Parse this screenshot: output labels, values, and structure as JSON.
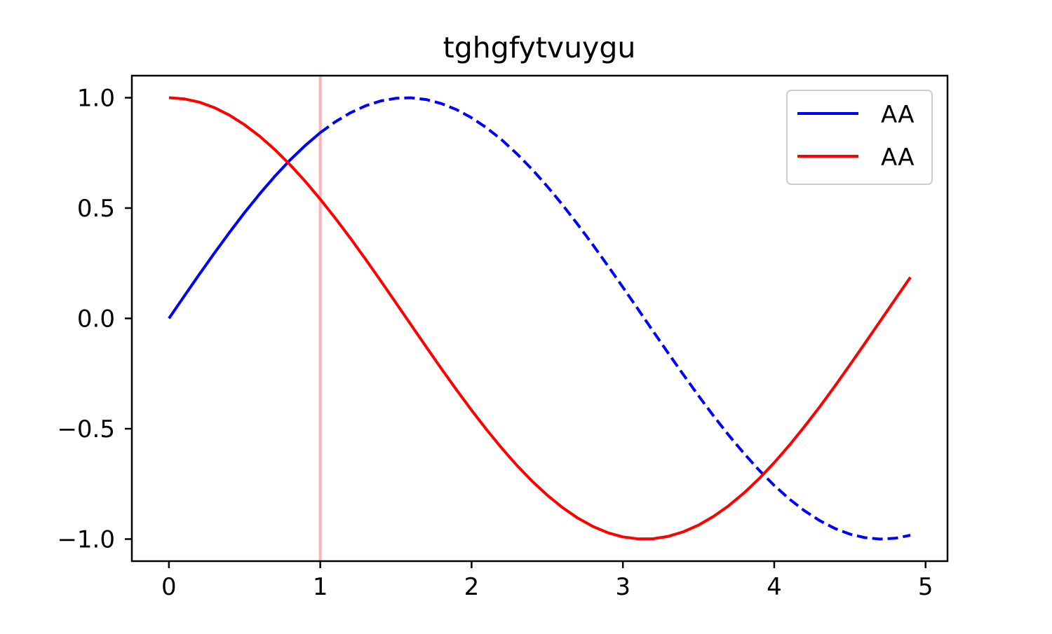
{
  "chart_data": {
    "type": "line",
    "title": "tghgfytvuygu",
    "xlabel": "",
    "ylabel": "",
    "xlim": [
      -0.245,
      5.145
    ],
    "ylim": [
      -1.1,
      1.1
    ],
    "x_ticks": [
      0,
      1,
      2,
      3,
      4,
      5
    ],
    "x_tick_labels": [
      "0",
      "1",
      "2",
      "3",
      "4",
      "5"
    ],
    "y_ticks": [
      -1.0,
      -0.5,
      0.0,
      0.5,
      1.0
    ],
    "y_tick_labels": [
      "−1.0",
      "−0.5",
      "0.0",
      "0.5",
      "1.0"
    ],
    "grid": false,
    "legend_position": "top-right",
    "x": [
      0.0,
      0.1,
      0.2,
      0.3,
      0.4,
      0.5,
      0.6,
      0.7,
      0.8,
      0.9,
      1.0,
      1.1,
      1.2,
      1.3,
      1.4,
      1.5,
      1.6,
      1.7,
      1.8,
      1.9,
      2.0,
      2.1,
      2.2,
      2.3,
      2.4,
      2.5,
      2.6,
      2.7,
      2.8,
      2.9,
      3.0,
      3.1,
      3.2,
      3.3,
      3.4,
      3.5,
      3.6,
      3.7,
      3.8,
      3.9,
      4.0,
      4.1,
      4.2,
      4.3,
      4.4,
      4.5,
      4.6,
      4.7,
      4.8,
      4.9
    ],
    "series": [
      {
        "name": "AA",
        "color": "#0000ff",
        "style": "solid for x<=1, dashed for x>=1",
        "values": [
          0.0,
          0.0998,
          0.1987,
          0.2955,
          0.3894,
          0.4794,
          0.5646,
          0.6442,
          0.7174,
          0.7833,
          0.8415,
          0.8912,
          0.932,
          0.9636,
          0.9854,
          0.9975,
          0.9996,
          0.9917,
          0.9738,
          0.9463,
          0.9093,
          0.8632,
          0.8085,
          0.7457,
          0.6755,
          0.5985,
          0.5155,
          0.4274,
          0.335,
          0.2392,
          0.1411,
          0.0416,
          -0.0584,
          -0.1577,
          -0.2555,
          -0.3508,
          -0.4425,
          -0.5298,
          -0.6119,
          -0.6878,
          -0.7568,
          -0.8183,
          -0.8716,
          -0.9162,
          -0.9516,
          -0.9775,
          -0.9937,
          -0.9999,
          -0.9962,
          -0.9825
        ]
      },
      {
        "name": "AA",
        "color": "#ff0000",
        "style": "solid",
        "values": [
          1.0,
          0.995,
          0.9801,
          0.9553,
          0.9211,
          0.8776,
          0.8253,
          0.7648,
          0.6967,
          0.6216,
          0.5403,
          0.4536,
          0.3624,
          0.2675,
          0.17,
          0.0707,
          -0.0292,
          -0.1288,
          -0.2272,
          -0.3233,
          -0.4161,
          -0.5048,
          -0.5885,
          -0.6663,
          -0.7374,
          -0.8011,
          -0.8569,
          -0.904,
          -0.9422,
          -0.971,
          -0.99,
          -0.9991,
          -0.9983,
          -0.9875,
          -0.9668,
          -0.9365,
          -0.8968,
          -0.8481,
          -0.791,
          -0.7259,
          -0.6536,
          -0.5748,
          -0.4903,
          -0.4008,
          -0.3073,
          -0.2108,
          -0.1122,
          -0.0124,
          0.0875,
          0.1865
        ]
      }
    ],
    "vline": {
      "x": 1.0,
      "color": "#ff0000",
      "alpha": 0.3
    }
  }
}
